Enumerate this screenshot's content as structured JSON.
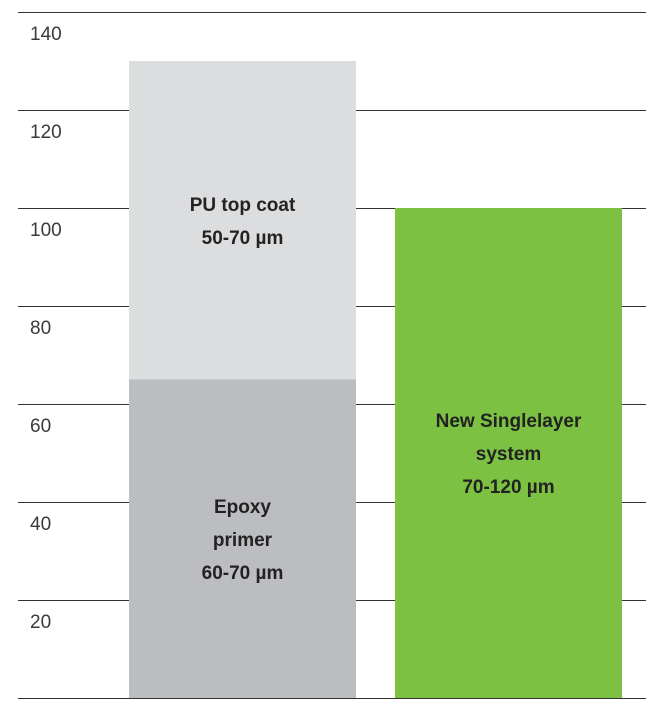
{
  "chart_data": {
    "type": "bar",
    "stacked": true,
    "title": "",
    "xlabel": "",
    "ylabel": "",
    "ylim": [
      0,
      140
    ],
    "y_ticks": [
      "20",
      "40",
      "60",
      "80",
      "100",
      "120",
      "140"
    ],
    "grid": true,
    "legend": "none",
    "bars": [
      {
        "segments": [
          {
            "start": 0,
            "end": 65,
            "value": 65,
            "label_lines": [
              "Epoxy",
              "primer",
              "60-70 µm"
            ],
            "color": "#bcbdc0"
          },
          {
            "start": 65,
            "end": 130,
            "value": 65,
            "label_lines": [
              "PU top coat",
              "50-70 µm"
            ],
            "color": "#dcdddf"
          }
        ]
      },
      {
        "segments": [
          {
            "start": 0,
            "end": 100,
            "value": 100,
            "label_lines": [
              "New Singlelayer",
              "system",
              "70-120 µm"
            ],
            "color": "#7cc142"
          }
        ]
      }
    ],
    "colors": {
      "grid": "#333333",
      "tick_text": "#3a3a3a",
      "label_text": "#222222"
    }
  }
}
